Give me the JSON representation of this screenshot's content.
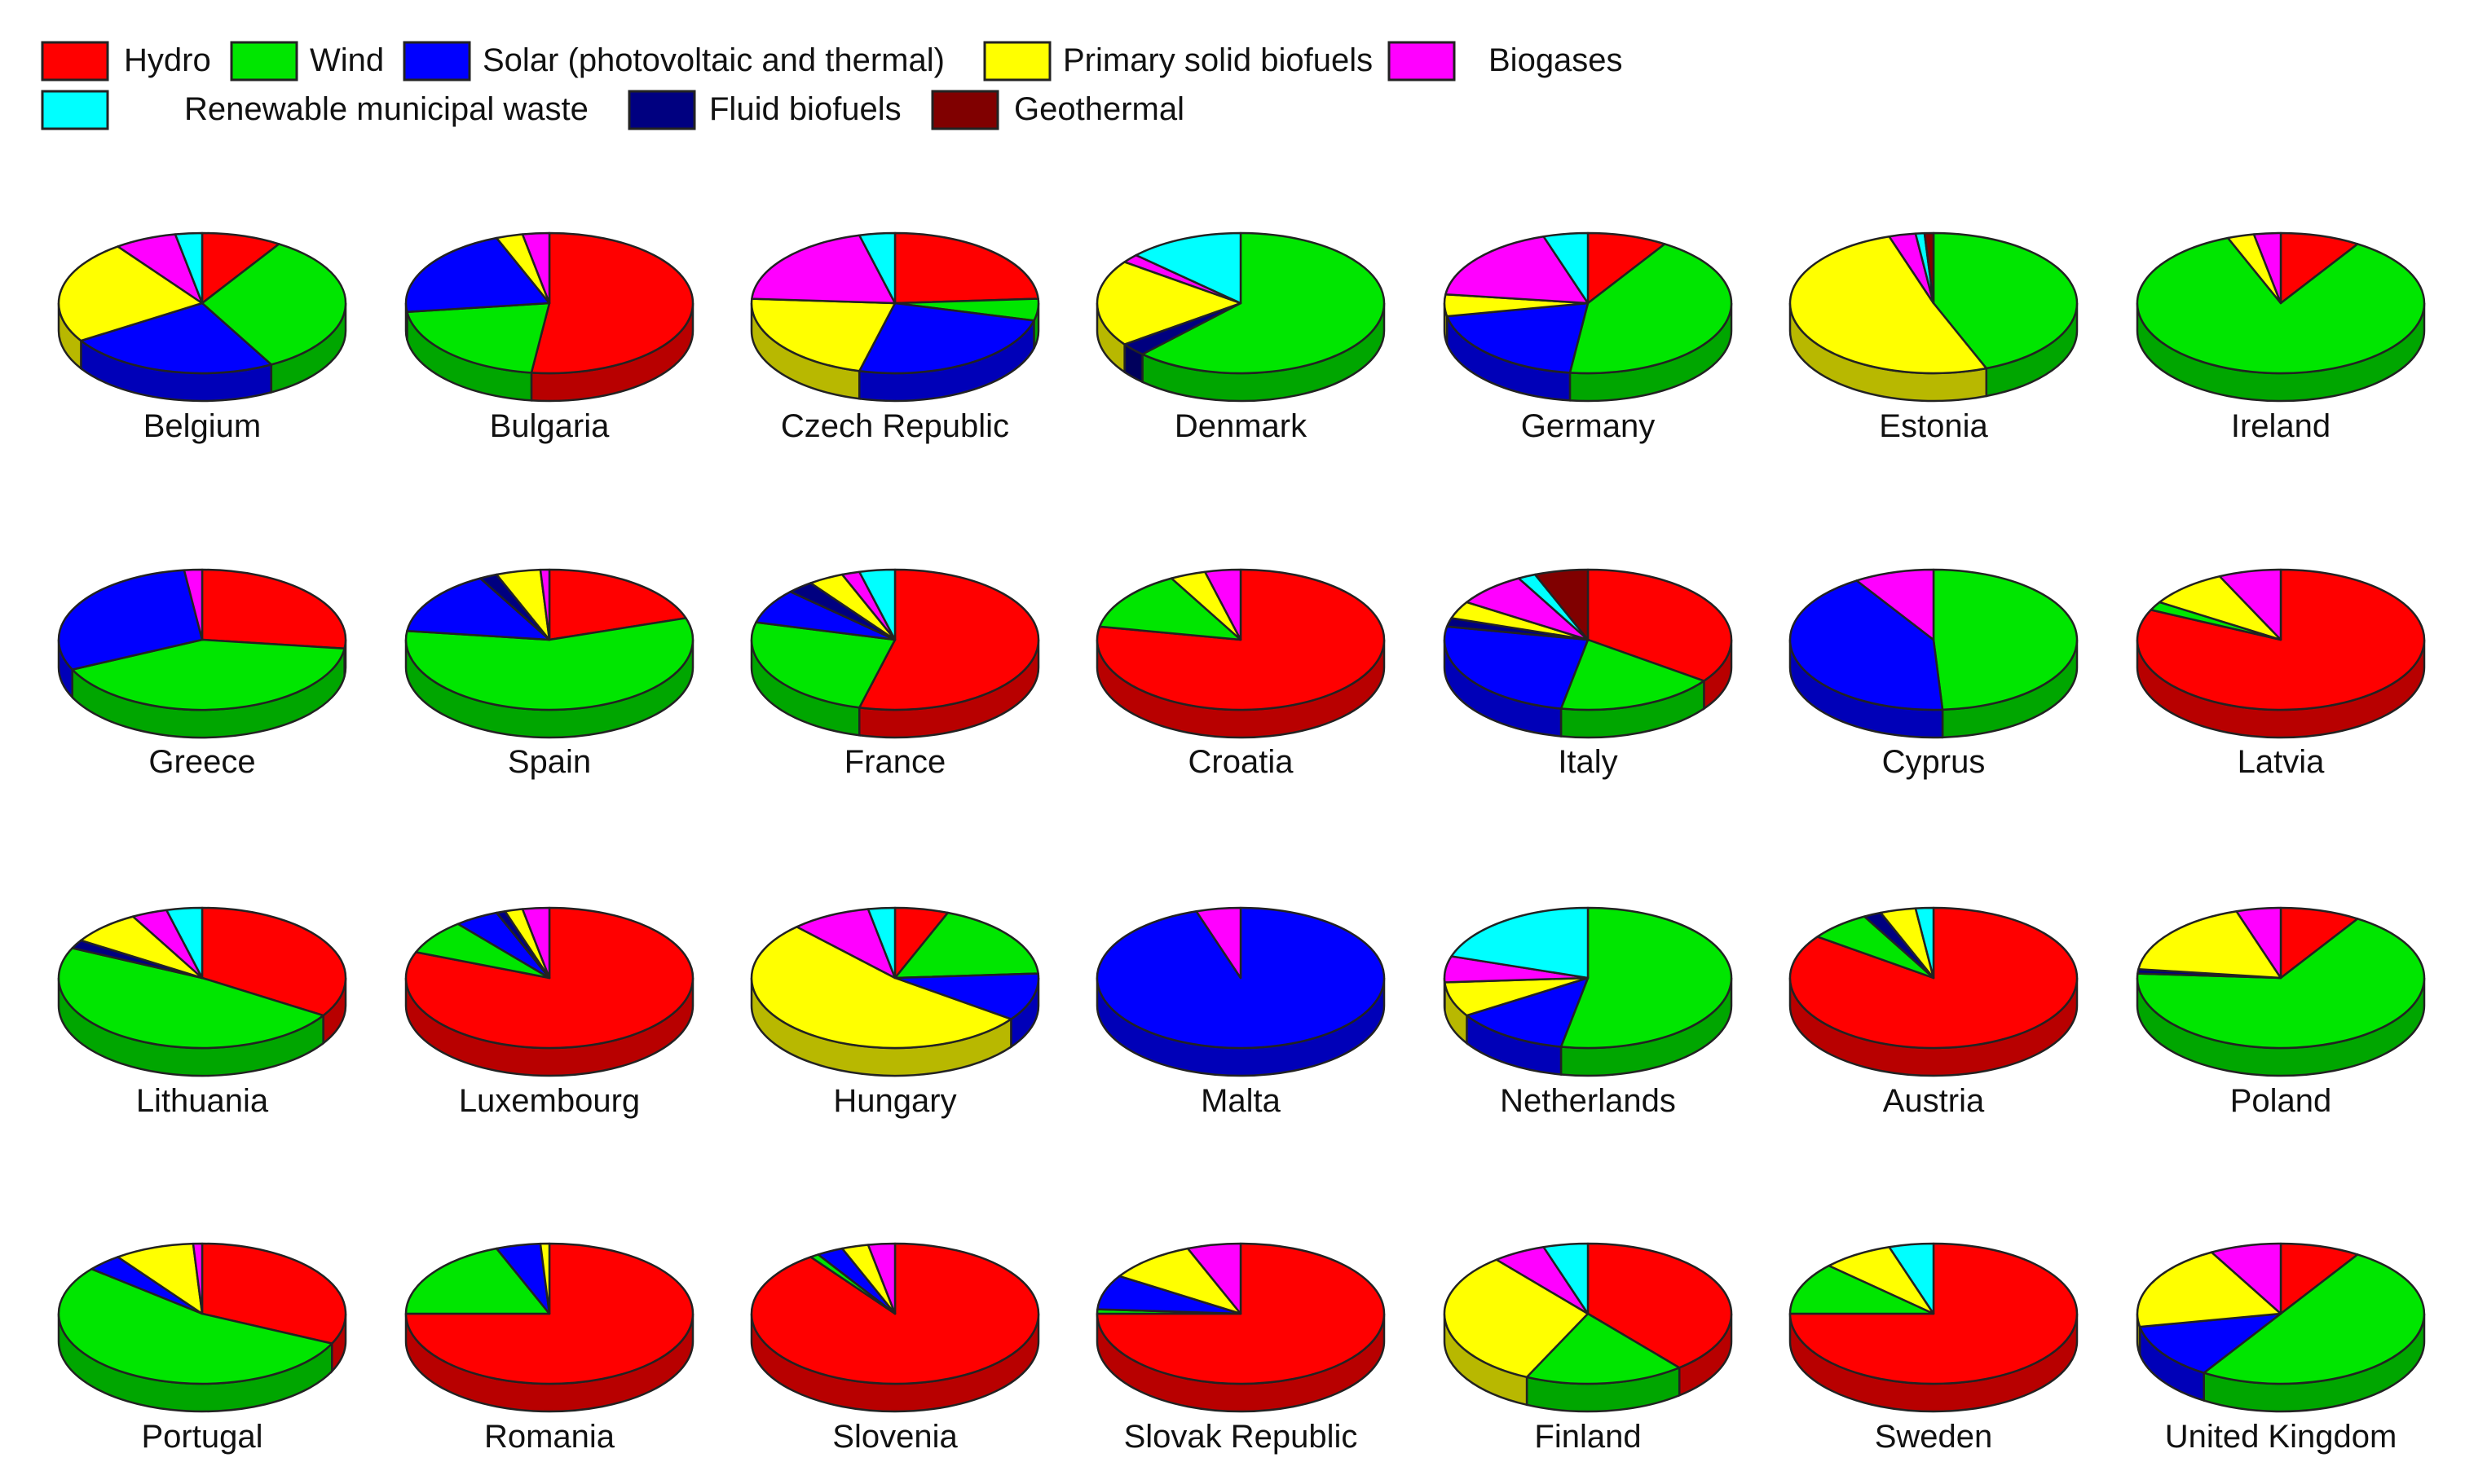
{
  "chart_data": {
    "type": "pie",
    "style": "3d-pie-grid",
    "legend_position": "top-left",
    "legend": [
      {
        "label": "Hydro",
        "color": "#ff0000"
      },
      {
        "label": "Wind",
        "color": "#00e600"
      },
      {
        "label": "Solar (photovoltaic and thermal)",
        "color": "#0000ff"
      },
      {
        "label": "Primary solid biofuels",
        "color": "#ffff00"
      },
      {
        "label": "Biogases",
        "color": "#ff00ff"
      },
      {
        "label": "Renewable municipal waste",
        "color": "#00ffff"
      },
      {
        "label": "Fluid biofuels",
        "color": "#000080"
      },
      {
        "label": "Geothermal",
        "color": "#800000"
      }
    ],
    "countries": [
      {
        "name": "Belgium",
        "slices": [
          {
            "s": 0,
            "v": 9
          },
          {
            "s": 1,
            "v": 33
          },
          {
            "s": 2,
            "v": 24
          },
          {
            "s": 3,
            "v": 24
          },
          {
            "s": 4,
            "v": 7
          },
          {
            "s": 5,
            "v": 3
          }
        ]
      },
      {
        "name": "Bulgaria",
        "slices": [
          {
            "s": 0,
            "v": 52
          },
          {
            "s": 1,
            "v": 21
          },
          {
            "s": 2,
            "v": 21
          },
          {
            "s": 3,
            "v": 3
          },
          {
            "s": 4,
            "v": 3
          }
        ]
      },
      {
        "name": "Czech Republic",
        "slices": [
          {
            "s": 0,
            "v": 24
          },
          {
            "s": 1,
            "v": 5
          },
          {
            "s": 2,
            "v": 25
          },
          {
            "s": 3,
            "v": 22
          },
          {
            "s": 4,
            "v": 20
          },
          {
            "s": 5,
            "v": 4
          }
        ]
      },
      {
        "name": "Denmark",
        "slices": [
          {
            "s": 1,
            "v": 62
          },
          {
            "s": 6,
            "v": 3
          },
          {
            "s": 3,
            "v": 20
          },
          {
            "s": 4,
            "v": 2
          },
          {
            "s": 5,
            "v": 13
          }
        ]
      },
      {
        "name": "Germany",
        "slices": [
          {
            "s": 0,
            "v": 9
          },
          {
            "s": 1,
            "v": 43
          },
          {
            "s": 2,
            "v": 20
          },
          {
            "s": 3,
            "v": 5
          },
          {
            "s": 4,
            "v": 18
          },
          {
            "s": 5,
            "v": 5
          }
        ]
      },
      {
        "name": "Estonia",
        "slices": [
          {
            "s": 1,
            "v": 44
          },
          {
            "s": 3,
            "v": 51
          },
          {
            "s": 4,
            "v": 3
          },
          {
            "s": 5,
            "v": 1
          },
          {
            "s": 7,
            "v": 1
          }
        ]
      },
      {
        "name": "Ireland",
        "slices": [
          {
            "s": 0,
            "v": 9
          },
          {
            "s": 1,
            "v": 85
          },
          {
            "s": 3,
            "v": 3
          },
          {
            "s": 4,
            "v": 3
          }
        ]
      },
      {
        "name": "Greece",
        "slices": [
          {
            "s": 0,
            "v": 27
          },
          {
            "s": 1,
            "v": 41
          },
          {
            "s": 2,
            "v": 30
          },
          {
            "s": 4,
            "v": 2
          }
        ]
      },
      {
        "name": "Spain",
        "slices": [
          {
            "s": 0,
            "v": 20
          },
          {
            "s": 1,
            "v": 57
          },
          {
            "s": 2,
            "v": 15
          },
          {
            "s": 6,
            "v": 2
          },
          {
            "s": 3,
            "v": 5
          },
          {
            "s": 4,
            "v": 1
          }
        ]
      },
      {
        "name": "France",
        "slices": [
          {
            "s": 0,
            "v": 54
          },
          {
            "s": 1,
            "v": 25
          },
          {
            "s": 2,
            "v": 8
          },
          {
            "s": 6,
            "v": 3
          },
          {
            "s": 3,
            "v": 4
          },
          {
            "s": 4,
            "v": 2
          },
          {
            "s": 5,
            "v": 4
          }
        ]
      },
      {
        "name": "Croatia",
        "slices": [
          {
            "s": 0,
            "v": 78
          },
          {
            "s": 1,
            "v": 14
          },
          {
            "s": 3,
            "v": 4
          },
          {
            "s": 4,
            "v": 4
          }
        ]
      },
      {
        "name": "Italy",
        "slices": [
          {
            "s": 0,
            "v": 35
          },
          {
            "s": 1,
            "v": 18
          },
          {
            "s": 2,
            "v": 25
          },
          {
            "s": 6,
            "v": 2
          },
          {
            "s": 3,
            "v": 4
          },
          {
            "s": 4,
            "v": 8
          },
          {
            "s": 5,
            "v": 2
          },
          {
            "s": 7,
            "v": 6
          }
        ]
      },
      {
        "name": "Cyprus",
        "slices": [
          {
            "s": 1,
            "v": 49
          },
          {
            "s": 2,
            "v": 42
          },
          {
            "s": 4,
            "v": 9
          }
        ]
      },
      {
        "name": "Latvia",
        "slices": [
          {
            "s": 0,
            "v": 82
          },
          {
            "s": 1,
            "v": 2
          },
          {
            "s": 3,
            "v": 9
          },
          {
            "s": 4,
            "v": 7
          }
        ]
      },
      {
        "name": "Lithuania",
        "slices": [
          {
            "s": 0,
            "v": 34
          },
          {
            "s": 1,
            "v": 48
          },
          {
            "s": 6,
            "v": 2
          },
          {
            "s": 3,
            "v": 8
          },
          {
            "s": 4,
            "v": 4
          },
          {
            "s": 5,
            "v": 4
          }
        ]
      },
      {
        "name": "Luxembourg",
        "slices": [
          {
            "s": 0,
            "v": 81
          },
          {
            "s": 1,
            "v": 8
          },
          {
            "s": 2,
            "v": 5
          },
          {
            "s": 6,
            "v": 1
          },
          {
            "s": 3,
            "v": 2
          },
          {
            "s": 4,
            "v": 3
          }
        ]
      },
      {
        "name": "Hungary",
        "slices": [
          {
            "s": 0,
            "v": 6
          },
          {
            "s": 1,
            "v": 18
          },
          {
            "s": 2,
            "v": 11
          },
          {
            "s": 3,
            "v": 53
          },
          {
            "s": 4,
            "v": 9
          },
          {
            "s": 5,
            "v": 3
          }
        ]
      },
      {
        "name": "Malta",
        "slices": [
          {
            "s": 2,
            "v": 95
          },
          {
            "s": 4,
            "v": 5
          }
        ]
      },
      {
        "name": "Netherlands",
        "slices": [
          {
            "s": 1,
            "v": 53
          },
          {
            "s": 2,
            "v": 13
          },
          {
            "s": 3,
            "v": 8
          },
          {
            "s": 4,
            "v": 6
          },
          {
            "s": 5,
            "v": 20
          }
        ]
      },
      {
        "name": "Austria",
        "slices": [
          {
            "s": 0,
            "v": 85
          },
          {
            "s": 1,
            "v": 7
          },
          {
            "s": 6,
            "v": 2
          },
          {
            "s": 3,
            "v": 4
          },
          {
            "s": 5,
            "v": 2
          }
        ]
      },
      {
        "name": "Poland",
        "slices": [
          {
            "s": 0,
            "v": 9
          },
          {
            "s": 1,
            "v": 67
          },
          {
            "s": 6,
            "v": 1
          },
          {
            "s": 3,
            "v": 18
          },
          {
            "s": 4,
            "v": 5
          }
        ]
      },
      {
        "name": "Portugal",
        "slices": [
          {
            "s": 0,
            "v": 32
          },
          {
            "s": 1,
            "v": 54
          },
          {
            "s": 2,
            "v": 4
          },
          {
            "s": 3,
            "v": 9
          },
          {
            "s": 4,
            "v": 1
          }
        ]
      },
      {
        "name": "Romania",
        "slices": [
          {
            "s": 0,
            "v": 75
          },
          {
            "s": 1,
            "v": 19
          },
          {
            "s": 2,
            "v": 5
          },
          {
            "s": 3,
            "v": 1
          }
        ]
      },
      {
        "name": "Slovenia",
        "slices": [
          {
            "s": 0,
            "v": 90
          },
          {
            "s": 1,
            "v": 1
          },
          {
            "s": 2,
            "v": 3
          },
          {
            "s": 3,
            "v": 3
          },
          {
            "s": 4,
            "v": 3
          }
        ]
      },
      {
        "name": "Slovak Republic",
        "slices": [
          {
            "s": 0,
            "v": 75
          },
          {
            "s": 1,
            "v": 1
          },
          {
            "s": 2,
            "v": 8
          },
          {
            "s": 3,
            "v": 10
          },
          {
            "s": 4,
            "v": 6
          }
        ]
      },
      {
        "name": "Finland",
        "slices": [
          {
            "s": 0,
            "v": 39
          },
          {
            "s": 1,
            "v": 18
          },
          {
            "s": 3,
            "v": 32
          },
          {
            "s": 4,
            "v": 6
          },
          {
            "s": 5,
            "v": 5
          }
        ]
      },
      {
        "name": "Sweden",
        "slices": [
          {
            "s": 0,
            "v": 75
          },
          {
            "s": 1,
            "v": 12
          },
          {
            "s": 3,
            "v": 8
          },
          {
            "s": 5,
            "v": 5
          }
        ]
      },
      {
        "name": "United Kingdom",
        "slices": [
          {
            "s": 0,
            "v": 9
          },
          {
            "s": 1,
            "v": 50
          },
          {
            "s": 2,
            "v": 13
          },
          {
            "s": 3,
            "v": 20
          },
          {
            "s": 4,
            "v": 8
          }
        ]
      }
    ]
  }
}
